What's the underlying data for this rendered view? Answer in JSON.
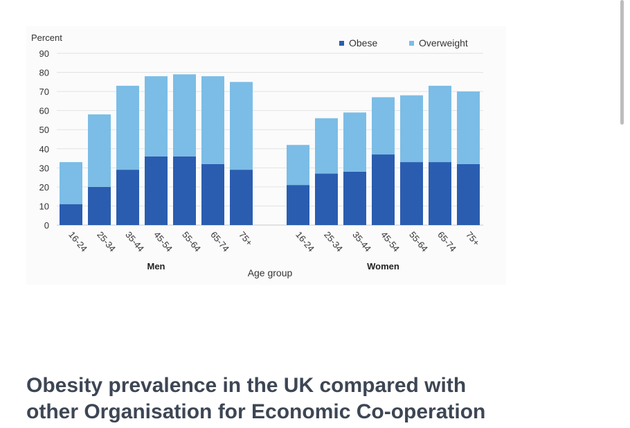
{
  "chart_data": {
    "type": "bar",
    "stacked": true,
    "ylabel": "Percent",
    "xlabel": "Age group",
    "ylim": [
      0,
      90
    ],
    "yticks": [
      0,
      10,
      20,
      30,
      40,
      50,
      60,
      70,
      80,
      90
    ],
    "legend_position": "top-right",
    "groups": [
      {
        "label": "Men",
        "categories": [
          "16-24",
          "25-34",
          "35-44",
          "45-54",
          "55-64",
          "65-74",
          "75+"
        ],
        "series": [
          {
            "name": "Obese",
            "values": [
              11,
              20,
              29,
              36,
              36,
              32,
              29
            ]
          },
          {
            "name": "Overweight",
            "values": [
              22,
              38,
              44,
              42,
              43,
              46,
              46
            ]
          }
        ]
      },
      {
        "label": "Women",
        "categories": [
          "16-24",
          "25-34",
          "35-44",
          "45-54",
          "55-64",
          "65-74",
          "75+"
        ],
        "series": [
          {
            "name": "Obese",
            "values": [
              21,
              27,
              28,
              37,
              33,
              33,
              32
            ]
          },
          {
            "name": "Overweight",
            "values": [
              21,
              29,
              31,
              30,
              35,
              40,
              38
            ]
          }
        ]
      }
    ],
    "colors": {
      "Obese": "#2a5db0",
      "Overweight": "#7bbde6"
    },
    "grid": true
  },
  "article": {
    "heading_line1": "Obesity prevalence in the UK compared with",
    "heading_line2": "other Organisation for Economic Co-operation"
  }
}
